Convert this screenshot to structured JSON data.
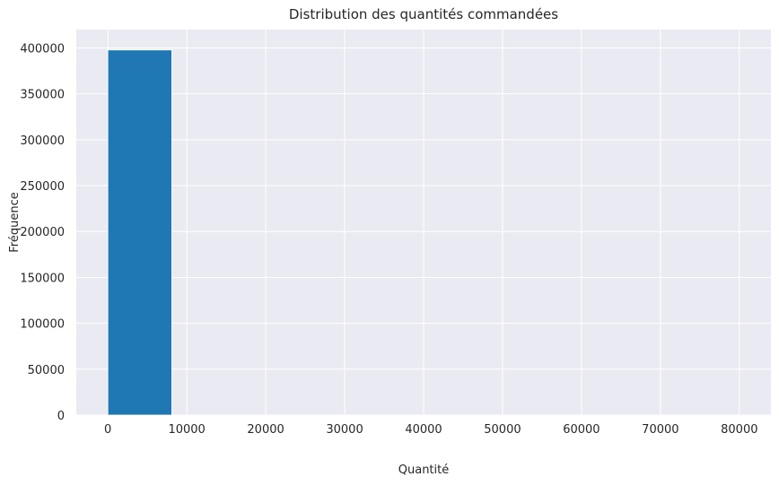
{
  "chart_data": {
    "type": "bar",
    "title": "Distribution des quantités commandées",
    "xlabel": "Quantité",
    "ylabel": "Fréquence",
    "xlim": [
      -4000,
      84000
    ],
    "ylim": [
      0,
      420000
    ],
    "x_ticks": [
      0,
      10000,
      20000,
      30000,
      40000,
      50000,
      60000,
      70000,
      80000
    ],
    "y_ticks": [
      0,
      50000,
      100000,
      150000,
      200000,
      250000,
      300000,
      350000,
      400000
    ],
    "bins": [
      {
        "start": 0,
        "end": 8099,
        "count": 397800
      },
      {
        "start": 8099,
        "end": 16198,
        "count": 2
      },
      {
        "start": 16198,
        "end": 24297,
        "count": 0
      },
      {
        "start": 24297,
        "end": 32396,
        "count": 0
      },
      {
        "start": 32396,
        "end": 40495,
        "count": 0
      },
      {
        "start": 40495,
        "end": 48594,
        "count": 0
      },
      {
        "start": 48594,
        "end": 56693,
        "count": 0
      },
      {
        "start": 56693,
        "end": 64792,
        "count": 0
      },
      {
        "start": 64792,
        "end": 72891,
        "count": 0
      },
      {
        "start": 72891,
        "end": 80995,
        "count": 2
      }
    ],
    "grid": true,
    "colors": {
      "bar": "#1f77b4",
      "background": "#eaeaf2",
      "grid": "#ffffff",
      "text": "#262626"
    }
  }
}
